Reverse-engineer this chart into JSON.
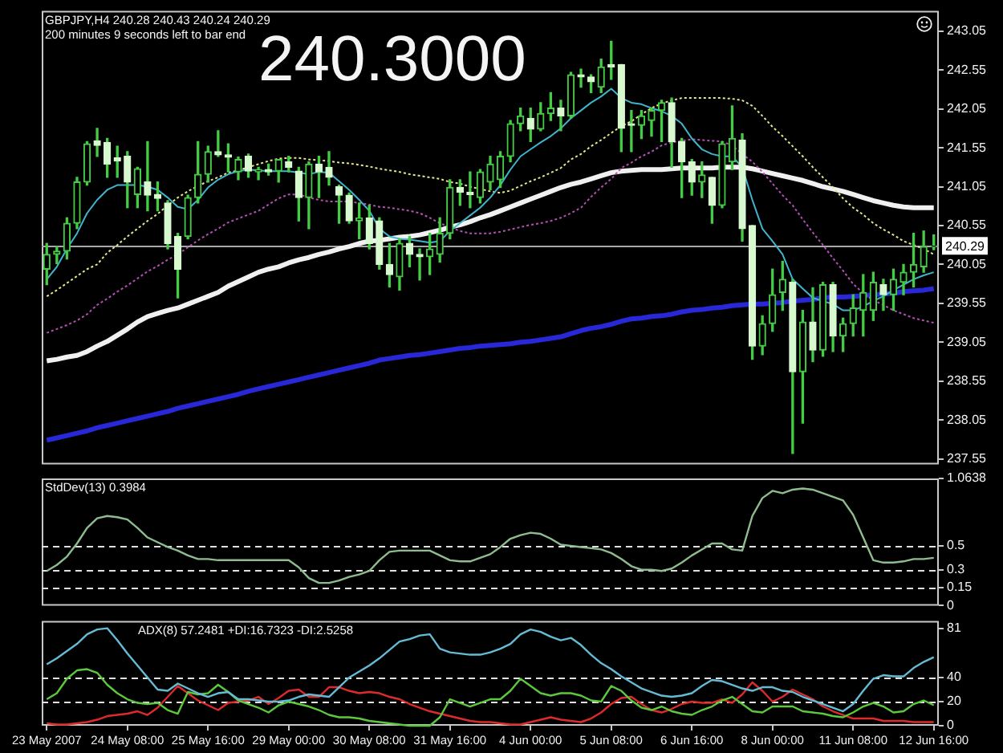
{
  "chart_data": [
    {
      "type": "candlestick",
      "title": "GBPJPY,H4 240.28 240.43 240.24 240.29",
      "subtitle": "200 minutes 9 seconds left to bar end",
      "annotations": [
        "240.3000"
      ],
      "categories": [
        null,
        null,
        null,
        null,
        null,
        null,
        null,
        null,
        null,
        null,
        null,
        null,
        null,
        null,
        null,
        null,
        null,
        null,
        null,
        null,
        null,
        null,
        null,
        null,
        null,
        null,
        null,
        null,
        null,
        null,
        null,
        null,
        null,
        null,
        null,
        null,
        null,
        null,
        null,
        null,
        null,
        null,
        null,
        null,
        null,
        null,
        null,
        null,
        null,
        null,
        null,
        null,
        null,
        null,
        null,
        null,
        null,
        null,
        null,
        null,
        null,
        null,
        null,
        null,
        null,
        null,
        null,
        null,
        null,
        null,
        null,
        null,
        null,
        null,
        null,
        null,
        null,
        null,
        null,
        null,
        null,
        null,
        null,
        null,
        null,
        null,
        null,
        null,
        null
      ],
      "ohlc": [
        [
          239.99,
          240.32,
          239.79,
          240.18
        ],
        [
          240.18,
          240.28,
          240.06,
          240.22
        ],
        [
          240.22,
          240.65,
          240.12,
          240.58
        ],
        [
          240.58,
          241.17,
          240.51,
          241.11
        ],
        [
          241.11,
          241.63,
          241.07,
          241.6
        ],
        [
          241.64,
          241.8,
          241.44,
          241.58
        ],
        [
          241.62,
          241.67,
          241.17,
          241.34
        ],
        [
          241.42,
          241.57,
          241.17,
          241.38
        ],
        [
          241.44,
          241.5,
          240.78,
          241.11
        ],
        [
          240.95,
          241.3,
          240.78,
          241.28
        ],
        [
          241.11,
          241.63,
          240.74,
          240.94
        ],
        [
          240.95,
          241.11,
          240.74,
          240.9
        ],
        [
          240.84,
          240.87,
          240.25,
          240.32
        ],
        [
          240.41,
          240.45,
          239.62,
          239.99
        ],
        [
          240.41,
          240.94,
          240.38,
          240.91
        ],
        [
          240.91,
          241.63,
          240.84,
          241.21
        ],
        [
          241.21,
          241.57,
          241.11,
          241.5
        ],
        [
          241.5,
          241.77,
          241.44,
          241.46
        ],
        [
          241.46,
          241.6,
          241.24,
          241.43
        ],
        [
          241.24,
          241.43,
          241.14,
          241.4
        ],
        [
          241.44,
          241.47,
          241.17,
          241.25
        ],
        [
          241.24,
          241.3,
          241.14,
          241.27
        ],
        [
          241.27,
          241.34,
          241.2,
          241.24
        ],
        [
          241.25,
          241.4,
          241.11,
          241.4
        ],
        [
          241.37,
          241.44,
          241.24,
          241.3
        ],
        [
          241.25,
          241.3,
          240.61,
          240.91
        ],
        [
          240.91,
          241.37,
          240.51,
          241.34
        ],
        [
          241.34,
          241.44,
          240.91,
          241.24
        ],
        [
          241.3,
          241.5,
          241.07,
          241.17
        ],
        [
          241.05,
          241.07,
          240.58,
          240.94
        ],
        [
          240.94,
          240.97,
          240.58,
          240.61
        ],
        [
          240.61,
          240.84,
          240.38,
          240.65
        ],
        [
          240.65,
          240.81,
          240.25,
          240.32
        ],
        [
          240.61,
          240.65,
          239.99,
          240.05
        ],
        [
          240.05,
          240.32,
          239.76,
          239.92
        ],
        [
          239.89,
          240.38,
          239.72,
          240.32
        ],
        [
          240.32,
          240.41,
          240.02,
          240.18
        ],
        [
          240.18,
          240.25,
          239.85,
          240.15
        ],
        [
          240.15,
          240.45,
          239.92,
          240.25
        ],
        [
          240.18,
          240.65,
          240.08,
          240.45
        ],
        [
          240.45,
          241.14,
          240.38,
          241.04
        ],
        [
          241.04,
          241.14,
          240.81,
          240.98
        ],
        [
          240.98,
          241.24,
          240.78,
          240.95
        ],
        [
          240.91,
          241.27,
          240.84,
          241.24
        ],
        [
          241.11,
          241.44,
          241.01,
          241.34
        ],
        [
          241.14,
          241.5,
          241.04,
          241.44
        ],
        [
          241.44,
          241.9,
          241.37,
          241.86
        ],
        [
          241.86,
          242.06,
          241.77,
          241.96
        ],
        [
          241.93,
          242.06,
          241.63,
          241.79
        ],
        [
          241.79,
          242.13,
          241.77,
          241.99
        ],
        [
          241.99,
          242.26,
          241.9,
          242.06
        ],
        [
          242.06,
          242.16,
          241.77,
          241.96
        ],
        [
          241.96,
          242.52,
          241.93,
          242.49
        ],
        [
          242.49,
          242.56,
          242.33,
          242.46
        ],
        [
          242.46,
          242.49,
          242.26,
          242.4
        ],
        [
          242.33,
          242.69,
          242.26,
          242.59
        ],
        [
          242.62,
          242.92,
          242.43,
          242.59
        ],
        [
          242.62,
          242.62,
          241.5,
          241.8
        ],
        [
          241.86,
          242.03,
          241.5,
          241.84
        ],
        [
          241.84,
          242.03,
          241.67,
          241.96
        ],
        [
          241.9,
          242.06,
          241.7,
          242.03
        ],
        [
          242.03,
          242.16,
          241.63,
          242.13
        ],
        [
          242.13,
          242.19,
          241.3,
          241.63
        ],
        [
          241.63,
          241.67,
          240.91,
          241.37
        ],
        [
          241.37,
          241.4,
          240.94,
          241.11
        ],
        [
          241.11,
          241.37,
          240.91,
          241.2
        ],
        [
          241.17,
          241.17,
          240.58,
          240.81
        ],
        [
          240.81,
          241.63,
          240.78,
          241.6
        ],
        [
          241.37,
          242.09,
          241.27,
          241.67
        ],
        [
          241.65,
          241.73,
          240.35,
          240.51
        ],
        [
          240.55,
          240.55,
          238.83,
          239
        ],
        [
          239,
          239.39,
          238.89,
          239.29
        ],
        [
          239.29,
          239.99,
          239.19,
          239.66
        ],
        [
          239.69,
          240.09,
          239.46,
          239.86
        ],
        [
          239.82,
          239.86,
          237.62,
          238.67
        ],
        [
          238.67,
          239.46,
          238.01,
          239.31
        ],
        [
          239.31,
          239.75,
          238.8,
          238.95
        ],
        [
          238.95,
          239.82,
          238.87,
          239.79
        ],
        [
          239.79,
          239.82,
          238.93,
          239.13
        ],
        [
          239.13,
          239.36,
          238.93,
          239.29
        ],
        [
          239.29,
          239.66,
          239.13,
          239.49
        ],
        [
          239.46,
          239.92,
          239.13,
          239.69
        ],
        [
          239.46,
          239.95,
          239.33,
          239.82
        ],
        [
          239.79,
          239.86,
          239.46,
          239.66
        ],
        [
          239.66,
          239.99,
          239.46,
          239.86
        ],
        [
          239.82,
          240.05,
          239.66,
          239.95
        ],
        [
          239.95,
          240.45,
          239.76,
          240.05
        ],
        [
          240.02,
          240.48,
          239.95,
          240.28
        ],
        [
          240.28,
          240.43,
          240.24,
          240.29
        ]
      ],
      "color": "#44cc44",
      "colors": [
        "#44cc44",
        "#44cc44",
        "#44cc44",
        "#44cc44",
        "#44cc44",
        "#d8f8d0",
        "#d8f8d0",
        "#d8f8d0",
        "#d8f8d0",
        "#44cc44",
        "#d8f8d0",
        "#d8f8d0",
        "#d8f8d0",
        "#d8f8d0",
        "#44cc44",
        "#44cc44",
        "#44cc44",
        "#d8f8d0",
        "#d8f8d0",
        "#44cc44",
        "#d8f8d0",
        "#44cc44",
        "#d8f8d0",
        "#44cc44",
        "#d8f8d0",
        "#d8f8d0",
        "#44cc44",
        "#d8f8d0",
        "#d8f8d0",
        "#d8f8d0",
        "#d8f8d0",
        "#44cc44",
        "#d8f8d0",
        "#d8f8d0",
        "#d8f8d0",
        "#44cc44",
        "#d8f8d0",
        "#d8f8d0",
        "#44cc44",
        "#44cc44",
        "#44cc44",
        "#d8f8d0",
        "#d8f8d0",
        "#44cc44",
        "#44cc44",
        "#44cc44",
        "#44cc44",
        "#44cc44",
        "#d8f8d0",
        "#44cc44",
        "#44cc44",
        "#d8f8d0",
        "#44cc44",
        "#d8f8d0",
        "#d8f8d0",
        "#44cc44",
        "#d8f8d0",
        "#d8f8d0",
        "#d8f8d0",
        "#44cc44",
        "#44cc44",
        "#44cc44",
        "#d8f8d0",
        "#d8f8d0",
        "#d8f8d0",
        "#44cc44",
        "#d8f8d0",
        "#44cc44",
        "#44cc44",
        "#d8f8d0",
        "#d8f8d0",
        "#44cc44",
        "#44cc44",
        "#44cc44",
        "#d8f8d0",
        "#44cc44",
        "#d8f8d0",
        "#44cc44",
        "#d8f8d0",
        "#44cc44",
        "#44cc44",
        "#44cc44",
        "#44cc44",
        "#d8f8d0",
        "#44cc44",
        "#44cc44",
        "#44cc44",
        "#44cc44",
        "#44cc44"
      ],
      "series": [
        {
          "type": "line",
          "color": "#40b4cc",
          "values": [
            239.86,
            240.02,
            240.25,
            240.45,
            240.71,
            240.88,
            241.01,
            241.07,
            241.07,
            241.07,
            241.05,
            241.01,
            240.91,
            240.79,
            240.76,
            240.88,
            241.04,
            241.14,
            241.21,
            241.25,
            241.27,
            241.26,
            241.25,
            241.25,
            241.25,
            241.23,
            241.21,
            241.24,
            241.23,
            241.12,
            241.01,
            240.88,
            240.74,
            240.51,
            240.41,
            240.38,
            240.37,
            240.35,
            240.33,
            240.35,
            240.48,
            240.58,
            240.68,
            240.78,
            240.91,
            241.07,
            241.27,
            241.44,
            241.53,
            241.62,
            241.7,
            241.8,
            241.93,
            242.03,
            242.13,
            242.21,
            242.31,
            242.19,
            242.13,
            242.11,
            242.06,
            242.02,
            241.96,
            241.86,
            241.67,
            241.53,
            241.47,
            241.44,
            241.44,
            241.3,
            240.88,
            240.51,
            240.35,
            240.18,
            239.86,
            239.74,
            239.62,
            239.58,
            239.54,
            239.46,
            239.46,
            239.51,
            239.58,
            239.64,
            239.72,
            239.79,
            239.86,
            239.91,
            239.95
          ]
        },
        {
          "type": "line",
          "color": "#e6e68c",
          "line_style": "dotted",
          "values": [
            239.64,
            239.72,
            239.81,
            239.9,
            239.99,
            240.05,
            240.2,
            240.3,
            240.41,
            240.51,
            240.61,
            240.7,
            240.81,
            240.91,
            240.99,
            241.06,
            241.12,
            241.17,
            241.23,
            241.26,
            241.3,
            241.34,
            241.38,
            241.41,
            241.42,
            241.42,
            241.4,
            241.39,
            241.38,
            241.36,
            241.35,
            241.33,
            241.31,
            241.28,
            241.26,
            241.24,
            241.21,
            241.19,
            241.17,
            241.15,
            241.11,
            241.09,
            241.05,
            241.02,
            240.99,
            240.97,
            241,
            241.06,
            241.12,
            241.17,
            241.23,
            241.29,
            241.4,
            241.47,
            241.57,
            241.65,
            241.74,
            241.83,
            241.89,
            241.98,
            242.06,
            242.12,
            242.16,
            242.19,
            242.19,
            242.19,
            242.19,
            242.19,
            242.18,
            242.16,
            242.09,
            241.96,
            241.82,
            241.7,
            241.57,
            241.44,
            241.3,
            241.17,
            241.04,
            240.9,
            240.78,
            240.69,
            240.58,
            240.5,
            240.43,
            240.35,
            240.3,
            240.25,
            240.18
          ]
        },
        {
          "type": "line",
          "color": "#b450b4",
          "line_style": "dotted",
          "values": [
            239.17,
            239.22,
            239.27,
            239.33,
            239.41,
            239.53,
            239.61,
            239.7,
            239.78,
            239.87,
            239.96,
            240.03,
            240.11,
            240.18,
            240.27,
            240.36,
            240.44,
            240.51,
            240.59,
            240.64,
            240.69,
            240.74,
            240.82,
            240.9,
            240.95,
            240.95,
            240.91,
            240.88,
            240.86,
            240.86,
            240.86,
            240.84,
            240.82,
            240.79,
            240.78,
            240.76,
            240.74,
            240.71,
            240.65,
            240.58,
            240.53,
            240.48,
            240.45,
            240.45,
            240.45,
            240.47,
            240.5,
            240.53,
            240.56,
            240.58,
            240.61,
            240.65,
            240.71,
            240.78,
            240.92,
            241.04,
            241.15,
            241.29,
            241.36,
            241.44,
            241.5,
            241.58,
            241.62,
            241.64,
            241.66,
            241.65,
            241.64,
            241.63,
            241.58,
            241.47,
            241.37,
            241.24,
            241.09,
            240.94,
            240.81,
            240.63,
            240.46,
            240.3,
            240.13,
            239.97,
            239.8,
            239.68,
            239.59,
            239.53,
            239.46,
            239.41,
            239.36,
            239.33,
            239.3
          ]
        },
        {
          "type": "line",
          "color": "#f0f0f0",
          "values": [
            238.81,
            238.83,
            238.86,
            238.88,
            238.93,
            239,
            239.06,
            239.14,
            239.22,
            239.31,
            239.38,
            239.42,
            239.46,
            239.49,
            239.54,
            239.59,
            239.64,
            239.69,
            239.77,
            239.83,
            239.89,
            239.95,
            239.99,
            240.02,
            240.07,
            240.11,
            240.14,
            240.18,
            240.21,
            240.25,
            240.28,
            240.32,
            240.35,
            240.36,
            240.38,
            240.4,
            240.41,
            240.43,
            240.46,
            240.49,
            240.53,
            240.56,
            240.6,
            240.65,
            240.69,
            240.74,
            240.79,
            240.84,
            240.89,
            240.94,
            240.99,
            241.04,
            241.08,
            241.11,
            241.15,
            241.19,
            241.23,
            241.25,
            241.26,
            241.27,
            241.27,
            241.27,
            241.28,
            241.29,
            241.29,
            241.29,
            241.29,
            241.3,
            241.3,
            241.3,
            241.28,
            241.25,
            241.22,
            241.19,
            241.16,
            241.13,
            241.09,
            241.05,
            241.02,
            240.99,
            240.95,
            240.91,
            240.87,
            240.84,
            240.81,
            240.79,
            240.78,
            240.78,
            240.78
          ]
        },
        {
          "type": "line",
          "color": "#2828d8",
          "values": [
            237.79,
            237.82,
            237.85,
            237.88,
            237.91,
            237.95,
            237.98,
            238.01,
            238.04,
            238.07,
            238.1,
            238.13,
            238.16,
            238.2,
            238.23,
            238.26,
            238.29,
            238.32,
            238.35,
            238.38,
            238.42,
            238.45,
            238.48,
            238.51,
            238.54,
            238.57,
            238.6,
            238.63,
            238.66,
            238.69,
            238.72,
            238.75,
            238.78,
            238.82,
            238.84,
            238.86,
            238.88,
            238.89,
            238.91,
            238.93,
            238.95,
            238.97,
            238.98,
            239,
            239.01,
            239.02,
            239.03,
            239.05,
            239.06,
            239.08,
            239.1,
            239.12,
            239.16,
            239.2,
            239.23,
            239.25,
            239.28,
            239.32,
            239.35,
            239.36,
            239.38,
            239.39,
            239.41,
            239.44,
            239.46,
            239.47,
            239.49,
            239.5,
            239.52,
            239.53,
            239.54,
            239.54,
            239.55,
            239.56,
            239.58,
            239.59,
            239.6,
            239.62,
            239.63,
            239.63,
            239.64,
            239.65,
            239.66,
            239.67,
            239.68,
            239.7,
            239.71,
            239.72,
            239.74
          ]
        }
      ],
      "ylim": [
        237.48,
        243.31
      ],
      "yticks": [
        237.55,
        238.05,
        238.55,
        239.05,
        239.55,
        240.05,
        240.55,
        241.05,
        241.55,
        242.05,
        242.55,
        243.05
      ],
      "ref_lines": [
        {
          "axis": "y",
          "value": 240.29,
          "label": "240.29",
          "color": "#a8a8a8"
        }
      ],
      "tick_labels": "y"
    },
    {
      "type": "line",
      "title": "StdDev(13) 0.3984",
      "categories": [
        null,
        null,
        null,
        null,
        null,
        null,
        null,
        null,
        null,
        null,
        null,
        null,
        null,
        null,
        null,
        null,
        null,
        null,
        null,
        null,
        null,
        null,
        null,
        null,
        null,
        null,
        null,
        null,
        null,
        null,
        null,
        null,
        null,
        null,
        null,
        null,
        null,
        null,
        null,
        null,
        null,
        null,
        null,
        null,
        null,
        null,
        null,
        null,
        null,
        null,
        null,
        null,
        null,
        null,
        null,
        null,
        null,
        null,
        null,
        null,
        null,
        null,
        null,
        null,
        null,
        null,
        null,
        null,
        null,
        null,
        null,
        null,
        null,
        null,
        null,
        null,
        null,
        null,
        null,
        null,
        null,
        null,
        null,
        null,
        null,
        null,
        null,
        null,
        null
      ],
      "series": [
        {
          "color": "#8fbc8f",
          "values": [
            0.29,
            0.34,
            0.41,
            0.52,
            0.65,
            0.73,
            0.75,
            0.74,
            0.72,
            0.65,
            0.57,
            0.53,
            0.49,
            0.46,
            0.42,
            0.39,
            0.39,
            0.38,
            0.38,
            0.38,
            0.38,
            0.38,
            0.38,
            0.38,
            0.38,
            0.32,
            0.23,
            0.19,
            0.19,
            0.21,
            0.24,
            0.26,
            0.29,
            0.38,
            0.45,
            0.46,
            0.46,
            0.46,
            0.46,
            0.42,
            0.38,
            0.37,
            0.37,
            0.4,
            0.43,
            0.49,
            0.56,
            0.59,
            0.61,
            0.6,
            0.56,
            0.51,
            0.5,
            0.49,
            0.48,
            0.47,
            0.44,
            0.39,
            0.33,
            0.3,
            0.3,
            0.29,
            0.31,
            0.36,
            0.42,
            0.47,
            0.52,
            0.52,
            0.47,
            0.46,
            0.75,
            0.9,
            0.96,
            0.94,
            0.97,
            0.98,
            0.97,
            0.94,
            0.91,
            0.88,
            0.76,
            0.57,
            0.38,
            0.36,
            0.36,
            0.37,
            0.39,
            0.39,
            0.4
          ]
        }
      ],
      "ylim": [
        0,
        1.0638
      ],
      "yticks": [
        0,
        0.15,
        0.3,
        0.5,
        1.0638
      ],
      "ref_lines": [
        {
          "axis": "y",
          "value": 0.5,
          "color": "#e0e0e0",
          "line_style": "dashed"
        },
        {
          "axis": "y",
          "value": 0.3,
          "color": "#e0e0e0",
          "line_style": "dashed"
        },
        {
          "axis": "y",
          "value": 0.15,
          "color": "#e0e0e0",
          "line_style": "dashed"
        }
      ],
      "tick_labels": "y"
    },
    {
      "type": "line",
      "title": "ADX(8) 57.2481 +DI:16.7323 -DI:2.5258",
      "categories": [
        "23 May 2007",
        null,
        null,
        null,
        null,
        null,
        null,
        null,
        "24 May 08:00",
        null,
        null,
        null,
        null,
        null,
        null,
        null,
        "25 May 16:00",
        null,
        null,
        null,
        null,
        null,
        null,
        null,
        "29 May 00:00",
        null,
        null,
        null,
        null,
        null,
        null,
        null,
        "30 May 08:00",
        null,
        null,
        null,
        null,
        null,
        null,
        null,
        "31 May 16:00",
        null,
        null,
        null,
        null,
        null,
        null,
        null,
        "4 Jun 00:00",
        null,
        null,
        null,
        null,
        null,
        null,
        null,
        "5 Jun 08:00",
        null,
        null,
        null,
        null,
        null,
        null,
        null,
        "6 Jun 16:00",
        null,
        null,
        null,
        null,
        null,
        null,
        null,
        "8 Jun 00:00",
        null,
        null,
        null,
        null,
        null,
        null,
        null,
        "11 Jun 08:00",
        null,
        null,
        null,
        null,
        null,
        null,
        null,
        "12 Jun 16:00"
      ],
      "series": [
        {
          "color": "#66bbd4",
          "values": [
            51,
            56,
            62,
            68,
            76,
            80,
            81,
            71,
            60,
            50,
            40,
            30,
            29,
            35,
            31,
            27,
            24,
            27,
            28,
            22,
            22,
            21,
            20,
            20,
            21,
            24,
            26,
            25,
            24,
            32,
            40,
            45,
            50,
            56,
            63,
            70,
            72,
            75,
            76,
            64,
            61,
            60,
            59,
            59,
            61,
            64,
            68,
            76,
            80,
            78,
            74,
            71,
            73,
            67,
            59,
            52,
            47,
            41,
            36,
            31,
            28,
            25,
            24,
            25,
            27,
            33,
            38,
            37,
            34,
            31,
            29,
            32,
            32,
            29,
            28,
            24,
            21,
            18,
            15,
            12,
            18,
            29,
            39,
            42,
            41,
            41,
            48,
            53,
            57
          ]
        },
        {
          "color": "#5cc83c",
          "values": [
            22,
            27,
            39,
            46,
            47,
            44,
            34,
            27,
            22,
            19,
            18,
            19,
            13,
            10,
            28,
            26,
            27,
            34,
            28,
            21,
            18,
            15,
            11,
            17,
            20,
            18,
            16,
            13,
            9,
            7,
            7,
            6,
            4,
            3,
            2,
            1,
            0,
            0,
            0,
            7,
            22,
            19,
            16,
            19,
            22,
            22,
            29,
            39,
            33,
            27,
            25,
            27,
            27,
            25,
            21,
            20,
            33,
            29,
            21,
            15,
            13,
            16,
            12,
            10,
            9,
            13,
            16,
            21,
            24,
            18,
            12,
            11,
            16,
            16,
            16,
            12,
            11,
            10,
            8,
            7,
            11,
            16,
            19,
            16,
            11,
            12,
            18,
            21,
            17
          ]
        },
        {
          "color": "#dd2a2a",
          "values": [
            2,
            1,
            1,
            2,
            3,
            5,
            8,
            9,
            10,
            12,
            9,
            15,
            24,
            33,
            27,
            21,
            17,
            13,
            19,
            20,
            21,
            24,
            18,
            23,
            29,
            30,
            24,
            24,
            32,
            32,
            29,
            27,
            28,
            27,
            24,
            22,
            18,
            15,
            12,
            10,
            8,
            6,
            4,
            3,
            3,
            2,
            1,
            1,
            3,
            5,
            7,
            5,
            4,
            3,
            6,
            11,
            18,
            23,
            24,
            18,
            13,
            11,
            14,
            18,
            20,
            19,
            19,
            22,
            19,
            26,
            36,
            29,
            20,
            24,
            30,
            26,
            22,
            16,
            12,
            9,
            6,
            6,
            6,
            4,
            4,
            4,
            3,
            3,
            3
          ]
        }
      ],
      "ylim": [
        0,
        87
      ],
      "yticks": [
        0,
        20,
        40,
        81
      ],
      "ref_lines": [
        {
          "axis": "y",
          "value": 40,
          "color": "#e0e0e0",
          "line_style": "dashed"
        },
        {
          "axis": "y",
          "value": 20,
          "color": "#e0e0e0",
          "line_style": "dashed"
        }
      ]
    }
  ]
}
